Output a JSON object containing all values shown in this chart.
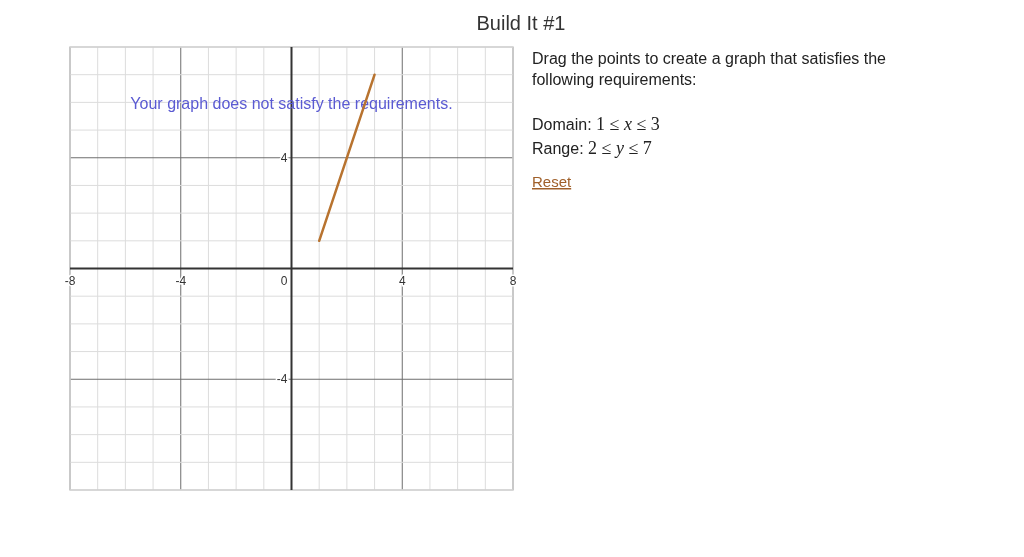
{
  "chart_data": {
    "type": "line",
    "title": "Build It #1",
    "annotations": [
      "Your graph does not satisfy the requirements.",
      "Drag the points to create a graph that satisfies the following requirements:",
      "Domain: 1 ≤ x ≤ 3",
      "Range: 2 ≤ y ≤ 7",
      "Reset"
    ],
    "x": [
      1,
      3
    ],
    "series": [
      {
        "color": "#b8732f",
        "values": [
          1,
          7
        ]
      }
    ],
    "xlim": [
      -8,
      8
    ],
    "ylim": [
      -8,
      8
    ],
    "xticks": [
      -8,
      {
        "value": -7,
        "label": null
      },
      {
        "value": -6,
        "label": null
      },
      {
        "value": -5,
        "label": null
      },
      -4,
      {
        "value": -3,
        "label": null
      },
      {
        "value": -2,
        "label": null
      },
      {
        "value": -1,
        "label": null
      },
      0,
      {
        "value": 1,
        "label": null
      },
      {
        "value": 2,
        "label": null
      },
      {
        "value": 3,
        "label": null
      },
      4,
      {
        "value": 5,
        "label": null
      },
      {
        "value": 6,
        "label": null
      },
      {
        "value": 7,
        "label": null
      },
      8
    ],
    "yticks": [
      {
        "value": -8,
        "label": null
      },
      {
        "value": -7,
        "label": null
      },
      {
        "value": -6,
        "label": null
      },
      {
        "value": -5,
        "label": null
      },
      -4,
      {
        "value": -3,
        "label": null
      },
      {
        "value": -2,
        "label": null
      },
      {
        "value": -1,
        "label": null
      },
      {
        "value": 0,
        "label": null
      },
      {
        "value": 1,
        "label": null
      },
      {
        "value": 2,
        "label": null
      },
      {
        "value": 3,
        "label": null
      },
      4,
      {
        "value": 5,
        "label": null
      },
      {
        "value": 6,
        "label": null
      },
      {
        "value": 7,
        "label": null
      },
      {
        "value": 8,
        "label": null
      }
    ],
    "grid": true
  }
}
